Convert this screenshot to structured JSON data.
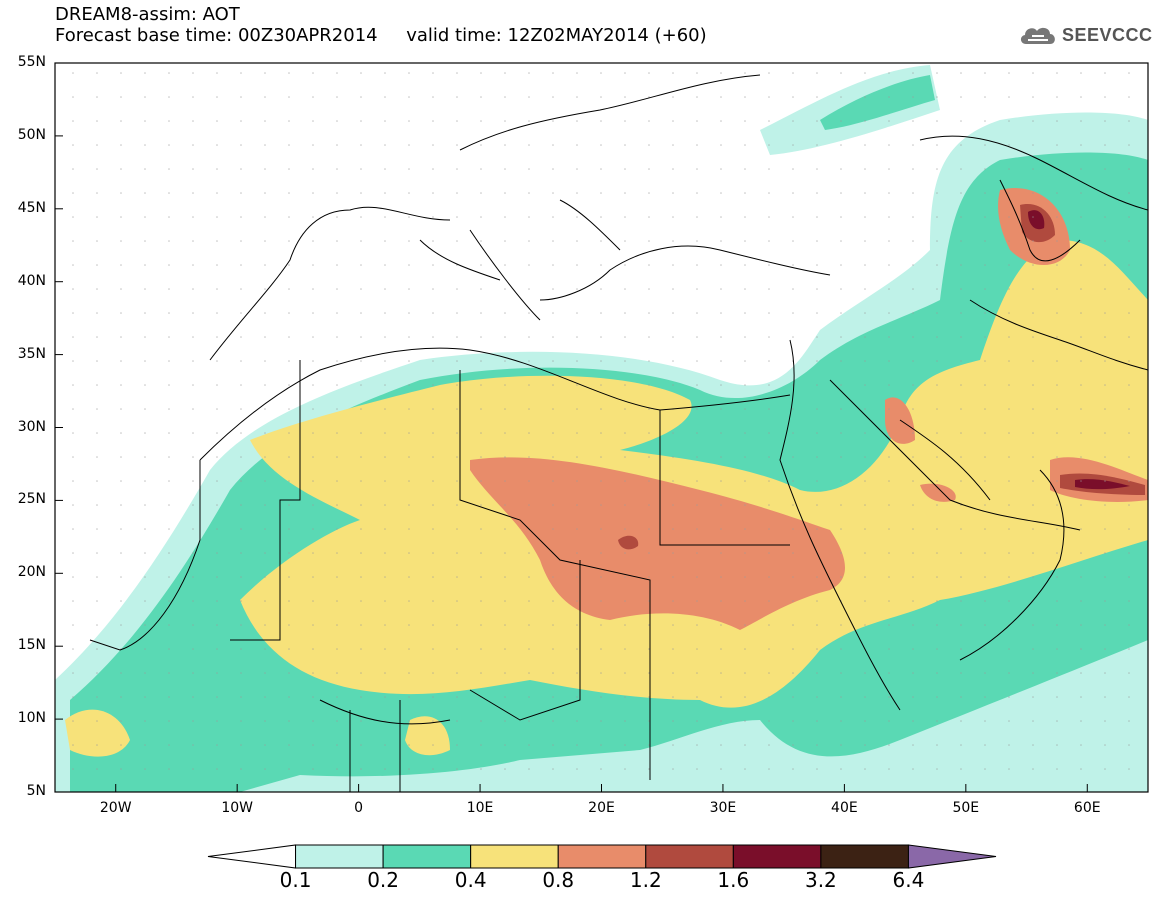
{
  "title": {
    "line1": "DREAM8-assim: AOT",
    "line2": "Forecast base time: 00Z30APR2014     valid time: 12Z02MAY2014 (+60)"
  },
  "logo": {
    "text": "SEEVCCC",
    "icon": "cloud-icon"
  },
  "map": {
    "lat_labels": [
      "55N",
      "50N",
      "45N",
      "40N",
      "35N",
      "30N",
      "25N",
      "20N",
      "15N",
      "10N",
      "5N"
    ],
    "lon_labels": [
      "20W",
      "10W",
      "0",
      "10E",
      "20E",
      "30E",
      "40E",
      "50E",
      "60E"
    ],
    "lat_range": [
      5,
      55
    ],
    "lon_range": [
      -25,
      65
    ]
  },
  "legend": {
    "levels": [
      "0.1",
      "0.2",
      "0.4",
      "0.8",
      "1.2",
      "1.6",
      "3.2",
      "6.4"
    ],
    "colors": [
      "#ffffff",
      "#bff2e8",
      "#5ad9b4",
      "#f7e27a",
      "#e88c6a",
      "#b04a3e",
      "#7a0e2a",
      "#3c2214",
      "#8a68a8"
    ]
  }
}
